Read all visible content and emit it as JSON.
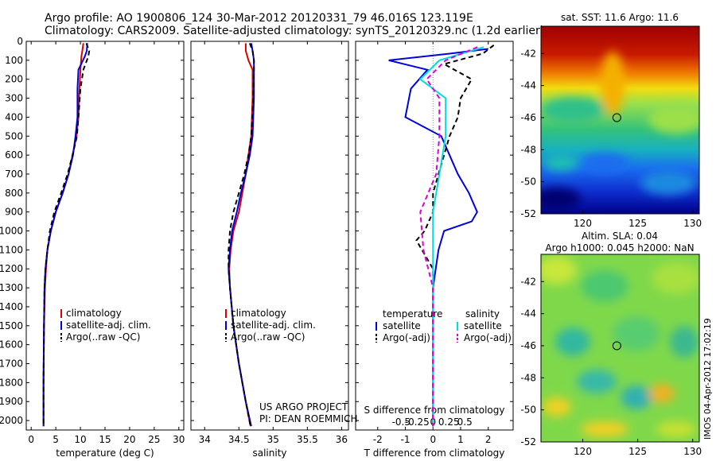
{
  "title_line1": "Argo profile: AO 1900806_124 30-Mar-2012 20120331_79 46.016S 123.119E",
  "title_line2": "Climatology: CARS2009. Satellite-adjusted climatology: synTS_20120329.nc (1.2d earlier)",
  "project_line1": "US ARGO PROJECT",
  "project_line2": "PI: DEAN ROEMMICH",
  "timestamp": "IMOS 04-Apr-2012 17:02:19",
  "colors": {
    "climatology": "#dd0000",
    "satellite": "#0000dd",
    "argo": "#000000",
    "salinity_sat": "#00dddd",
    "salinity_argo": "#dd00dd"
  },
  "chart_data": [
    {
      "type": "line",
      "name": "temperature-panel",
      "xlabel": "temperature (deg C)",
      "ylabel": "",
      "xlim": [
        -1,
        31
      ],
      "ylim": [
        2050,
        0
      ],
      "xticks": [
        0,
        5,
        10,
        15,
        20,
        25,
        30
      ],
      "yticks": [
        0,
        100,
        200,
        300,
        400,
        500,
        600,
        700,
        800,
        900,
        1000,
        1100,
        1200,
        1300,
        1400,
        1500,
        1600,
        1700,
        1800,
        1900,
        2000
      ],
      "legend": [
        "climatology",
        "satellite-adj. clim.",
        "Argo(..raw -QC)"
      ],
      "legend_position": "lower-right",
      "series": [
        {
          "name": "climatology",
          "style": "solid",
          "color": "#dd0000",
          "x": [
            10.6,
            10.4,
            10.2,
            10.0,
            9.8,
            9.6,
            9.2,
            8.4,
            7.6,
            6.4,
            5.0,
            4.0,
            3.3,
            3.0,
            2.8,
            2.6,
            2.5,
            2.5
          ],
          "y": [
            10,
            50,
            80,
            150,
            250,
            400,
            500,
            600,
            700,
            800,
            900,
            1000,
            1100,
            1200,
            1300,
            1500,
            1800,
            2030
          ]
        },
        {
          "name": "satellite-adj. clim.",
          "style": "solid",
          "color": "#0000dd",
          "x": [
            11.4,
            11.3,
            10.9,
            9.6,
            9.4,
            9.4,
            9.0,
            8.5,
            7.6,
            6.4,
            5.0,
            4.0,
            3.3,
            2.9,
            2.7,
            2.6,
            2.5,
            2.5
          ],
          "y": [
            10,
            50,
            80,
            150,
            250,
            400,
            500,
            600,
            700,
            800,
            900,
            1000,
            1100,
            1200,
            1300,
            1500,
            1800,
            2030
          ]
        },
        {
          "name": "Argo(..raw -QC)",
          "style": "dashed",
          "color": "#000000",
          "x": [
            11.2,
            11.8,
            11.6,
            10.6,
            10.0,
            9.6,
            9.3,
            8.4,
            7.4,
            6.1,
            4.7,
            3.8,
            3.3,
            2.9,
            2.7,
            2.6,
            2.5,
            2.5
          ],
          "y": [
            10,
            50,
            80,
            150,
            250,
            400,
            500,
            600,
            700,
            800,
            900,
            1000,
            1100,
            1200,
            1300,
            1500,
            1800,
            2030
          ]
        }
      ]
    },
    {
      "type": "line",
      "name": "salinity-panel",
      "xlabel": "salinity",
      "ylabel": "",
      "xlim": [
        33.8,
        36.1
      ],
      "ylim": [
        2050,
        0
      ],
      "xticks": [
        34,
        34.5,
        35,
        35.5,
        36
      ],
      "legend": [
        "climatology",
        "satellite-adj. clim.",
        "Argo(..raw -QC)"
      ],
      "legend_position": "lower-right",
      "series": [
        {
          "name": "climatology",
          "style": "solid",
          "color": "#dd0000",
          "x": [
            34.6,
            34.6,
            34.64,
            34.7,
            34.7,
            34.68,
            34.64,
            34.6,
            34.55,
            34.5,
            34.42,
            34.38,
            34.36,
            34.37,
            34.42,
            34.5,
            34.6,
            34.67
          ],
          "y": [
            10,
            50,
            100,
            150,
            300,
            500,
            600,
            700,
            800,
            900,
            1000,
            1100,
            1200,
            1300,
            1500,
            1700,
            1900,
            2030
          ]
        },
        {
          "name": "satellite-adj. clim.",
          "style": "solid",
          "color": "#0000dd",
          "x": [
            34.68,
            34.7,
            34.72,
            34.72,
            34.72,
            34.7,
            34.66,
            34.6,
            34.53,
            34.47,
            34.4,
            34.37,
            34.35,
            34.37,
            34.42,
            34.5,
            34.6,
            34.68
          ],
          "y": [
            10,
            50,
            100,
            150,
            300,
            500,
            600,
            700,
            800,
            900,
            1000,
            1100,
            1200,
            1300,
            1500,
            1700,
            1900,
            2030
          ]
        },
        {
          "name": "Argo(..raw -QC)",
          "style": "dashed",
          "color": "#000000",
          "x": [
            34.66,
            34.7,
            34.72,
            34.72,
            34.71,
            34.68,
            34.64,
            34.58,
            34.5,
            34.42,
            34.37,
            34.35,
            34.35,
            34.37,
            34.42,
            34.5,
            34.6,
            34.67
          ],
          "y": [
            10,
            50,
            100,
            150,
            300,
            500,
            600,
            700,
            800,
            900,
            1000,
            1100,
            1200,
            1300,
            1500,
            1700,
            1900,
            2030
          ]
        }
      ]
    },
    {
      "type": "line",
      "name": "difference-panel",
      "xlabel": "T difference from climatology",
      "top_label": "S difference from climatology",
      "xlim": [
        -2.8,
        2.9
      ],
      "ylim": [
        2050,
        0
      ],
      "xticks_T": [
        -2,
        -1,
        0,
        1,
        2
      ],
      "xticks_S": [
        -0.5,
        -0.25,
        0,
        0.25,
        0.5
      ],
      "xticks_S_labels": [
        "-0.5",
        "-0.25",
        "0",
        "0.25",
        "0.5"
      ],
      "legend_titles": [
        "temperature",
        "salinity"
      ],
      "legend": [
        "satellite",
        "Argo(-adj)",
        "satellite",
        "Argo(-adj)"
      ],
      "legend_position": "lower-right",
      "series": [
        {
          "name": "temperature satellite",
          "style": "solid",
          "color": "#0000dd",
          "x": [
            2.0,
            0.6,
            -1.6,
            -0.2,
            -0.8,
            -1.0,
            0.3,
            0.9,
            1.3,
            1.6,
            1.4,
            0.4,
            0.2,
            0.1,
            0,
            0,
            0
          ],
          "y": [
            40,
            65,
            100,
            150,
            250,
            400,
            500,
            700,
            800,
            900,
            950,
            1000,
            1100,
            1200,
            1300,
            1600,
            2030
          ]
        },
        {
          "name": "temperature Argo(-adj)",
          "style": "dashed",
          "color": "#000000",
          "x": [
            2.2,
            1.8,
            0.4,
            1.4,
            1.0,
            0.9,
            0.6,
            0.2,
            0,
            0,
            -0.3,
            -0.6,
            -0.4,
            0,
            0,
            0,
            0
          ],
          "y": [
            20,
            65,
            120,
            200,
            300,
            400,
            500,
            700,
            800,
            900,
            1000,
            1050,
            1100,
            1200,
            1300,
            1600,
            2030
          ]
        },
        {
          "name": "salinity satellite",
          "style": "solid",
          "color": "#00dddd",
          "x": [
            0.8,
            0.1,
            -0.2,
            0.2,
            0.2,
            0.1,
            0,
            0,
            0,
            0,
            0
          ],
          "y": [
            30,
            100,
            200,
            300,
            500,
            700,
            900,
            1100,
            1300,
            1600,
            2030
          ]
        },
        {
          "name": "salinity Argo(-adj)",
          "style": "dashed",
          "color": "#dd00dd",
          "x": [
            0.7,
            0.2,
            -0.1,
            0.1,
            0.1,
            0.05,
            -0.2,
            -0.15,
            0,
            0,
            0
          ],
          "y": [
            30,
            100,
            200,
            300,
            500,
            700,
            900,
            1100,
            1300,
            1600,
            2030
          ]
        }
      ]
    },
    {
      "type": "heatmap",
      "name": "sst-map",
      "title": "sat. SST: 11.6  Argo: 11.6",
      "xticks": [
        120,
        125,
        130
      ],
      "yticks": [
        -42,
        -44,
        -46,
        -48,
        -50,
        -52
      ],
      "xlim": [
        116.2,
        130.6
      ],
      "ylim": [
        -52,
        -40.3
      ],
      "marker": {
        "lon": 123.1,
        "lat": -46.0
      }
    },
    {
      "type": "heatmap",
      "name": "sla-map",
      "title": "Altim. SLA: 0.04",
      "subtitle": "Argo h1000: 0.045 h2000: NaN",
      "xticks": [
        120,
        125,
        130
      ],
      "yticks": [
        -42,
        -44,
        -46,
        -48,
        -50,
        -52
      ],
      "xlim": [
        116.2,
        130.6
      ],
      "ylim": [
        -52,
        -40.3
      ],
      "marker": {
        "lon": 123.1,
        "lat": -46.0
      }
    }
  ]
}
